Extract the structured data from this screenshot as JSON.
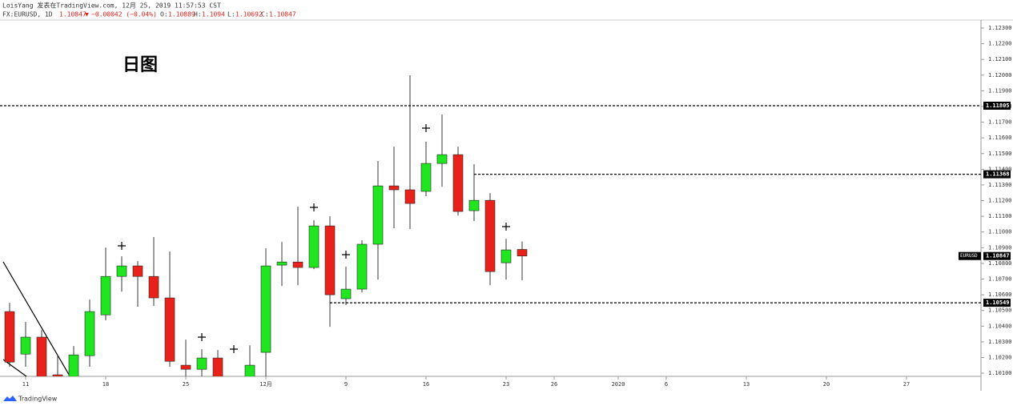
{
  "header": {
    "author_line": "LoisYang 发表在TradingView.com, 12月 25, 2019 11:57:53 CST",
    "symbol": "FX:EURUSD, 1D",
    "arrow": "▼",
    "change": "−0.00042 (−0.04%)",
    "o_label": "O:",
    "h_label": "H:",
    "l_label": "L:",
    "c_label": "C:",
    "brand": "TradingView"
  },
  "chart_data": {
    "type": "candlestick",
    "annotation": "日图",
    "symbol_tag": "EURUSD",
    "up_color": "#1fe61f",
    "down_color": "#e8221b",
    "level_color": "#000000",
    "categories": [
      null,
      "11",
      null,
      null,
      null,
      null,
      "18",
      null,
      null,
      null,
      null,
      "25",
      null,
      null,
      null,
      null,
      "12月",
      null,
      null,
      null,
      null,
      "9",
      null,
      null,
      null,
      null,
      "16",
      null,
      null,
      null,
      null,
      "23",
      null,
      null,
      "26",
      null,
      null,
      null,
      "2020",
      null,
      null,
      "6",
      null,
      null,
      null,
      null,
      "13",
      null,
      null,
      null,
      null,
      "20",
      null,
      null,
      null,
      null,
      "27",
      null,
      null,
      null,
      null
    ],
    "open": [
      1.10493,
      1.10222,
      1.1033,
      1.1009,
      1.10079,
      1.10212,
      1.10472,
      1.10717,
      1.10784,
      1.10717,
      1.1058,
      1.10151,
      1.10125,
      1.10197,
      null,
      1.10079,
      1.10233,
      1.10789,
      1.10809,
      1.10774,
      1.11039,
      1.10575,
      1.10636,
      1.10922,
      1.11294,
      1.11269,
      1.11259,
      1.11437,
      1.11493,
      1.11136,
      1.11202,
      1.10804,
      1.10889,
      null,
      null,
      null,
      null,
      null,
      null,
      null,
      null,
      null,
      null,
      null,
      null,
      null,
      null,
      null,
      null,
      null,
      null,
      null,
      null,
      null,
      null,
      null,
      null,
      null,
      null,
      null,
      null
    ],
    "high": [
      1.10549,
      1.10427,
      1.10375,
      1.10217,
      1.10273,
      1.10569,
      1.10901,
      1.10845,
      1.10814,
      1.10968,
      1.10876,
      1.10314,
      1.10253,
      1.10248,
      null,
      1.10278,
      1.10896,
      1.10937,
      1.11162,
      1.11075,
      1.111,
      1.10779,
      1.10947,
      1.11453,
      1.11544,
      1.11999,
      1.11575,
      1.11749,
      1.11544,
      1.11432,
      1.11248,
      1.10957,
      1.1094,
      null,
      null,
      null,
      null,
      null,
      null,
      null,
      null,
      null,
      null,
      null,
      null,
      null,
      null,
      null,
      null,
      null,
      null,
      null,
      null,
      null,
      null,
      null,
      null,
      null,
      null,
      null,
      null
    ],
    "low": [
      1.10141,
      1.10141,
      1.10069,
      1.10069,
      1.10054,
      1.10141,
      1.10437,
      1.1062,
      1.10524,
      1.10529,
      1.10141,
      1.10079,
      1.10079,
      1.10069,
      null,
      1.10054,
      1.10079,
      1.10656,
      1.10661,
      1.10763,
      1.10396,
      1.10534,
      1.10615,
      1.10697,
      1.11024,
      1.11019,
      1.11228,
      1.11289,
      1.11105,
      1.1107,
      1.10661,
      1.10697,
      1.10692,
      null,
      null,
      null,
      null,
      null,
      null,
      null,
      null,
      null,
      null,
      null,
      null,
      null,
      null,
      null,
      null,
      null,
      null,
      null,
      null,
      null,
      null,
      null,
      null,
      null,
      null,
      null,
      null
    ],
    "close": [
      1.10171,
      1.1033,
      1.10079,
      1.10079,
      1.10217,
      1.10493,
      1.10717,
      1.10784,
      1.10717,
      1.1058,
      1.10176,
      1.10125,
      1.10197,
      1.10079,
      null,
      1.10151,
      1.10784,
      1.10809,
      1.10774,
      1.11039,
      1.106,
      1.10636,
      1.10922,
      1.11294,
      1.11269,
      1.11182,
      1.11437,
      1.11493,
      1.11131,
      1.11202,
      1.10748,
      1.10886,
      1.10847,
      null,
      null,
      null,
      null,
      null,
      null,
      null,
      null,
      null,
      null,
      null,
      null,
      null,
      null,
      null,
      null,
      null,
      null,
      null,
      null,
      null,
      null,
      null,
      null,
      null,
      null,
      null,
      null
    ],
    "levels": [
      1.11805,
      1.11368,
      1.10549
    ],
    "ylim": [
      1.1008,
      1.12351
    ],
    "yticks": [
      {
        "value": 1.101,
        "label": "1.10100"
      },
      {
        "value": 1.102,
        "label": "1.10200"
      },
      {
        "value": 1.103,
        "label": "1.10300"
      },
      {
        "value": 1.104,
        "label": "1.10400"
      },
      {
        "value": 1.105,
        "label": "1.10500"
      },
      {
        "value": 1.106,
        "label": "1.10600"
      },
      {
        "value": 1.107,
        "label": "1.10700"
      },
      {
        "value": 1.108,
        "label": "1.10800"
      },
      {
        "value": 1.109,
        "label": "1.10900"
      },
      {
        "value": 1.11,
        "label": "1.11000"
      },
      {
        "value": 1.111,
        "label": "1.11100"
      },
      {
        "value": 1.112,
        "label": "1.11200"
      },
      {
        "value": 1.113,
        "label": "1.11300"
      },
      {
        "value": 1.114,
        "label": "1.11400"
      },
      {
        "value": 1.115,
        "label": "1.11500"
      },
      {
        "value": 1.116,
        "label": "1.11600"
      },
      {
        "value": 1.117,
        "label": "1.11700"
      },
      {
        "value": 1.118,
        "label": "1.11800"
      },
      {
        "value": 1.119,
        "label": "1.11900"
      },
      {
        "value": 1.12,
        "label": "1.12000"
      },
      {
        "value": 1.121,
        "label": "1.12100"
      },
      {
        "value": 1.122,
        "label": "1.12200"
      },
      {
        "value": 1.123,
        "label": "1.12300"
      }
    ]
  }
}
